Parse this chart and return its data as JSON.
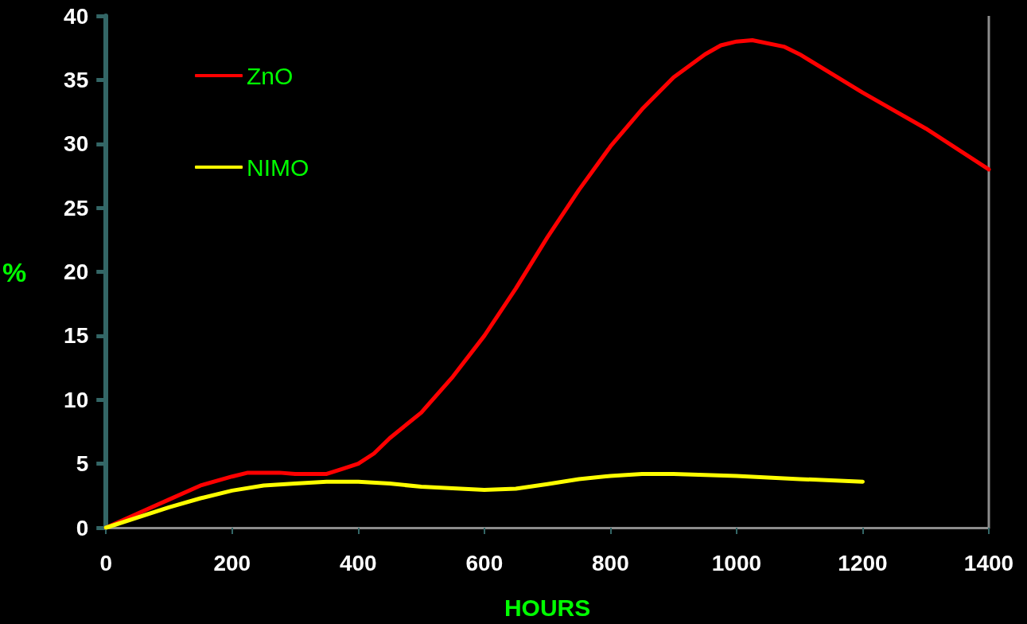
{
  "chart_data": {
    "type": "line",
    "xlabel": "HOURS",
    "ylabel": "%",
    "xlim": [
      0,
      1400
    ],
    "xticks": [
      0,
      200,
      400,
      600,
      800,
      1000,
      1200,
      1400
    ],
    "ylim": [
      0,
      40
    ],
    "yticks": [
      0,
      5,
      10,
      15,
      20,
      25,
      30,
      35,
      40
    ],
    "grid": false,
    "legend": "top left",
    "marker": "none",
    "line_style": "solid",
    "series": [
      {
        "name": "ZnO",
        "color": "#ff0000",
        "x": [
          0,
          50,
          100,
          150,
          200,
          225,
          275,
          300,
          350,
          375,
          400,
          425,
          450,
          500,
          550,
          600,
          650,
          700,
          750,
          800,
          850,
          900,
          950,
          975,
          1000,
          1025,
          1075,
          1100,
          1200,
          1300,
          1400
        ],
        "values": [
          0,
          1.1,
          2.2,
          3.3,
          4.0,
          4.3,
          4.3,
          4.2,
          4.2,
          4.6,
          5.0,
          5.8,
          7.0,
          9.0,
          11.8,
          15.0,
          18.7,
          22.7,
          26.4,
          29.8,
          32.7,
          35.2,
          37.0,
          37.7,
          38.0,
          38.1,
          37.6,
          37.0,
          34.0,
          31.2,
          28.0
        ]
      },
      {
        "name": "NIMO",
        "color": "#ffff00",
        "x": [
          0,
          100,
          150,
          200,
          250,
          300,
          350,
          400,
          450,
          500,
          600,
          650,
          700,
          750,
          800,
          850,
          900,
          1000,
          1100,
          1200
        ],
        "values": [
          0,
          1.6,
          2.3,
          2.9,
          3.3,
          3.45,
          3.6,
          3.6,
          3.45,
          3.2,
          2.95,
          3.05,
          3.4,
          3.8,
          4.05,
          4.2,
          4.2,
          4.05,
          3.8,
          3.6
        ]
      }
    ]
  }
}
